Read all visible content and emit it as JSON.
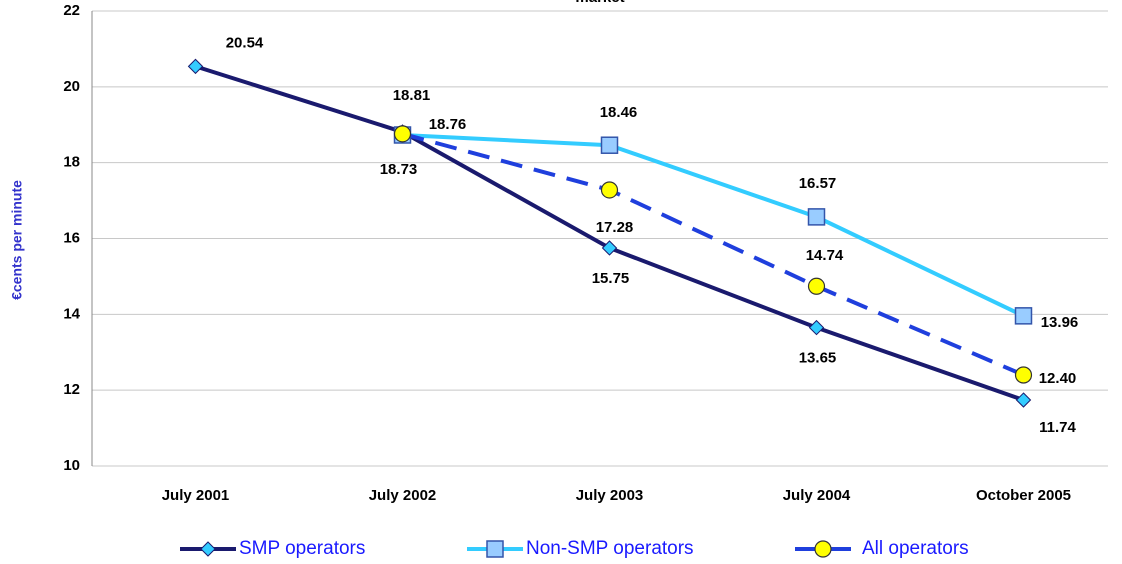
{
  "chart_data": {
    "type": "line",
    "title": "market",
    "y_label": "€cents per minute",
    "categories": [
      "July 2001",
      "July 2002",
      "July 2003",
      "July 2004",
      "October 2005"
    ],
    "series": [
      {
        "name": "SMP operators",
        "color": "#1a1a6e",
        "marker": "diamond",
        "marker_color": "#33ccff",
        "dashed": false,
        "values": [
          20.54,
          18.81,
          15.75,
          13.65,
          11.74
        ]
      },
      {
        "name": "Non-SMP operators",
        "color": "#33ccff",
        "marker": "square",
        "marker_color": "#99ccff",
        "dashed": false,
        "values": [
          null,
          18.73,
          18.46,
          16.57,
          13.96
        ]
      },
      {
        "name": "All operators",
        "color": "#1f3fdd",
        "marker": "circle",
        "marker_color": "#ffff00",
        "dashed": true,
        "values": [
          null,
          18.76,
          17.28,
          14.74,
          12.4
        ],
        "value_labels": [
          null,
          "18.76",
          "17.28",
          "14.74",
          "12.40"
        ]
      }
    ],
    "ylim": [
      10,
      22
    ],
    "yticks": [
      10,
      12,
      14,
      16,
      18,
      20,
      22
    ],
    "grid": true,
    "legend": "bottom"
  }
}
